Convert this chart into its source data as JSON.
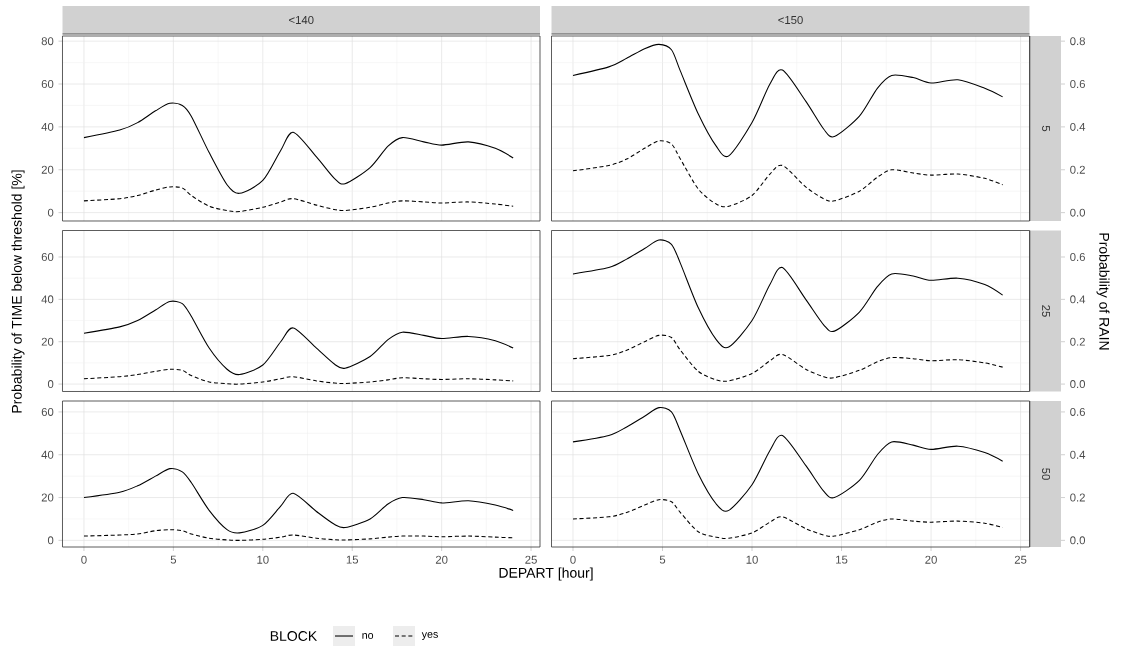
{
  "chart_data": [
    {
      "type": "line",
      "title": "<140",
      "x": [
        0,
        2,
        3,
        4,
        4.8,
        5.5,
        6,
        7,
        8,
        8.7,
        10,
        11,
        11.7,
        13,
        14,
        14.6,
        16,
        17,
        17.8,
        19,
        20,
        21.5,
        23,
        24
      ],
      "xlim": [
        -1.2,
        25.5
      ],
      "xticks": [
        0,
        5,
        10,
        15,
        20,
        25
      ],
      "ylim": [
        -3.9,
        82.4
      ],
      "yticks": [
        0,
        20,
        40,
        60,
        80
      ],
      "grid": true,
      "tick_labels": "y",
      "series": [
        {
          "color": "#000000",
          "line_style": "solid",
          "values": [
            35,
            38.5,
            42,
            47.5,
            51,
            50,
            45,
            28,
            13,
            9,
            15,
            29,
            37.5,
            26,
            16,
            13.5,
            21,
            31,
            35,
            33,
            31.5,
            33,
            30,
            25.5
          ]
        },
        {
          "color": "#000000",
          "line_style": "dashed",
          "values": [
            5.5,
            6.5,
            8,
            10.5,
            12,
            11.5,
            8,
            3,
            1,
            0.5,
            2.5,
            5,
            6.5,
            3.5,
            1.5,
            1,
            2.5,
            4.5,
            5.5,
            5,
            4.5,
            5,
            4,
            3
          ]
        }
      ]
    },
    {
      "type": "line",
      "title": "<150",
      "annotations": [
        "5"
      ],
      "x": [
        0,
        2,
        3,
        4,
        4.8,
        5.5,
        6,
        7,
        8,
        8.7,
        10,
        11,
        11.7,
        13,
        14,
        14.6,
        16,
        17,
        17.8,
        19,
        20,
        21.5,
        23,
        24
      ],
      "xlim": [
        -1.2,
        25.5
      ],
      "xticks": [
        0,
        5,
        10,
        15,
        20,
        25
      ],
      "ylim": [
        -3.9,
        82.4
      ],
      "yticks": [
        0,
        20,
        40,
        60,
        80
      ],
      "y2lim": [
        -0.039,
        0.824
      ],
      "y2ticks": [
        {
          "value": 0,
          "label": "0.0"
        },
        {
          "value": 0.2,
          "label": "0.2"
        },
        {
          "value": 0.4,
          "label": "0.4"
        },
        {
          "value": 0.6,
          "label": "0.6"
        },
        {
          "value": 0.8,
          "label": "0.8"
        }
      ],
      "grid": true,
      "tick_labels": false,
      "series": [
        {
          "color": "#000000",
          "line_style": "solid",
          "values": [
            64,
            68,
            72,
            76.5,
            78.5,
            76,
            66,
            46,
            31,
            26.5,
            42,
            60,
            66.5,
            52,
            39,
            35.5,
            45,
            58,
            64,
            63,
            60.5,
            62,
            58,
            54
          ]
        },
        {
          "color": "#000000",
          "line_style": "dashed",
          "values": [
            19.5,
            22,
            25,
            30,
            33.5,
            32,
            25,
            11,
            4,
            3,
            8,
            18,
            22,
            12,
            6.5,
            5.5,
            10,
            16.5,
            20,
            18.5,
            17.5,
            18,
            16,
            13
          ]
        }
      ]
    },
    {
      "type": "line",
      "ylabel": "Probability of TIME below threshold [%]",
      "x": [
        0,
        2,
        3,
        4,
        4.8,
        5.5,
        6,
        7,
        8,
        8.7,
        10,
        11,
        11.7,
        13,
        14,
        14.6,
        16,
        17,
        17.8,
        19,
        20,
        21.5,
        23,
        24
      ],
      "xlim": [
        -1.2,
        25.5
      ],
      "xticks": [
        0,
        5,
        10,
        15,
        20,
        25
      ],
      "ylim": [
        -3.5,
        72.5
      ],
      "yticks": [
        0,
        20,
        40,
        60
      ],
      "grid": true,
      "tick_labels": "y",
      "series": [
        {
          "color": "#000000",
          "line_style": "solid",
          "values": [
            24,
            27,
            30,
            35,
            39,
            38,
            32,
            17,
            7,
            4.5,
            9,
            20,
            26.5,
            17,
            9.5,
            7.5,
            13,
            21,
            24.5,
            23,
            21.5,
            22.5,
            20.5,
            17
          ]
        },
        {
          "color": "#000000",
          "line_style": "dashed",
          "values": [
            2.5,
            3.5,
            4.5,
            6,
            7,
            6.5,
            4,
            1,
            0.2,
            0,
            1,
            2.5,
            3.5,
            1.5,
            0.5,
            0.3,
            1,
            2,
            3,
            2.5,
            2.2,
            2.5,
            2,
            1.5
          ]
        }
      ]
    },
    {
      "type": "line",
      "annotations": [
        "25"
      ],
      "y2label": "Probability of RAIN",
      "x": [
        0,
        2,
        3,
        4,
        4.8,
        5.5,
        6,
        7,
        8,
        8.7,
        10,
        11,
        11.7,
        13,
        14,
        14.6,
        16,
        17,
        17.8,
        19,
        20,
        21.5,
        23,
        24
      ],
      "xlim": [
        -1.2,
        25.5
      ],
      "xticks": [
        0,
        5,
        10,
        15,
        20,
        25
      ],
      "ylim": [
        -3.5,
        72.5
      ],
      "yticks": [
        0,
        20,
        40,
        60
      ],
      "y2lim": [
        -0.035,
        0.725
      ],
      "y2ticks": [
        {
          "value": 0,
          "label": "0.0"
        },
        {
          "value": 0.2,
          "label": "0.2"
        },
        {
          "value": 0.4,
          "label": "0.4"
        },
        {
          "value": 0.6,
          "label": "0.6"
        }
      ],
      "grid": true,
      "tick_labels": false,
      "series": [
        {
          "color": "#000000",
          "line_style": "solid",
          "values": [
            52,
            55,
            59,
            64,
            68,
            66,
            57,
            36,
            21,
            17.5,
            30,
            47,
            55,
            40,
            28,
            25,
            34,
            46,
            52,
            51,
            49,
            50,
            47,
            42
          ]
        },
        {
          "color": "#000000",
          "line_style": "dashed",
          "values": [
            12,
            13.5,
            16,
            20,
            23,
            22,
            16,
            6,
            2,
            1.5,
            5,
            11,
            14,
            7,
            3.5,
            3,
            6.5,
            10.5,
            12.5,
            12,
            11,
            11.5,
            10,
            8
          ]
        }
      ]
    },
    {
      "type": "line",
      "xlabel": "DEPART [hour]",
      "legend_title": "BLOCK",
      "legend": "bottom",
      "x": [
        0,
        2,
        3,
        4,
        4.8,
        5.5,
        6,
        7,
        8,
        8.7,
        10,
        11,
        11.7,
        13,
        14,
        14.6,
        16,
        17,
        17.8,
        19,
        20,
        21.5,
        23,
        24
      ],
      "xlim": [
        -1.2,
        25.5
      ],
      "xticks": [
        0,
        5,
        10,
        15,
        20,
        25
      ],
      "ylim": [
        -3.1,
        65.1
      ],
      "yticks": [
        0,
        20,
        40,
        60
      ],
      "grid": true,
      "series": [
        {
          "name": "no",
          "color": "#000000",
          "line_style": "solid",
          "values": [
            20,
            22.5,
            25.5,
            30,
            33.5,
            32,
            27,
            14,
            5,
            3.5,
            7,
            16,
            22,
            13.5,
            7.5,
            6,
            10,
            17,
            20,
            19,
            17.5,
            18.5,
            16.5,
            14
          ]
        },
        {
          "name": "yes",
          "color": "#000000",
          "line_style": "dashed",
          "values": [
            2,
            2.5,
            3,
            4.5,
            5,
            4.5,
            3,
            1,
            0.2,
            0,
            0.5,
            1.5,
            2.5,
            1,
            0.3,
            0.2,
            0.7,
            1.5,
            2,
            2,
            1.7,
            2,
            1.5,
            1.2
          ]
        }
      ]
    },
    {
      "type": "line",
      "annotations": [
        "50"
      ],
      "x": [
        0,
        2,
        3,
        4,
        4.8,
        5.5,
        6,
        7,
        8,
        8.7,
        10,
        11,
        11.7,
        13,
        14,
        14.6,
        16,
        17,
        17.8,
        19,
        20,
        21.5,
        23,
        24
      ],
      "xlim": [
        -1.2,
        25.5
      ],
      "xticks": [
        0,
        5,
        10,
        15,
        20,
        25
      ],
      "ylim": [
        -3.1,
        65.1
      ],
      "yticks": [
        0,
        20,
        40,
        60
      ],
      "y2lim": [
        -0.031,
        0.651
      ],
      "y2ticks": [
        {
          "value": 0,
          "label": "0.0"
        },
        {
          "value": 0.2,
          "label": "0.2"
        },
        {
          "value": 0.4,
          "label": "0.4"
        },
        {
          "value": 0.6,
          "label": "0.6"
        }
      ],
      "grid": true,
      "tick_labels": "x",
      "series": [
        {
          "color": "#000000",
          "line_style": "solid",
          "values": [
            46,
            49,
            53,
            58,
            62,
            60,
            51,
            31,
            17,
            14,
            26,
            42,
            49,
            35,
            23,
            20,
            28,
            40,
            46,
            44.5,
            42.5,
            44,
            41,
            37
          ]
        },
        {
          "color": "#000000",
          "line_style": "dashed",
          "values": [
            10,
            11,
            13,
            16.5,
            19,
            18,
            13,
            4,
            1.5,
            1,
            3.5,
            8.5,
            11,
            5.5,
            2.5,
            2,
            5,
            8.5,
            10,
            9,
            8.5,
            9,
            8,
            6
          ]
        }
      ]
    }
  ]
}
